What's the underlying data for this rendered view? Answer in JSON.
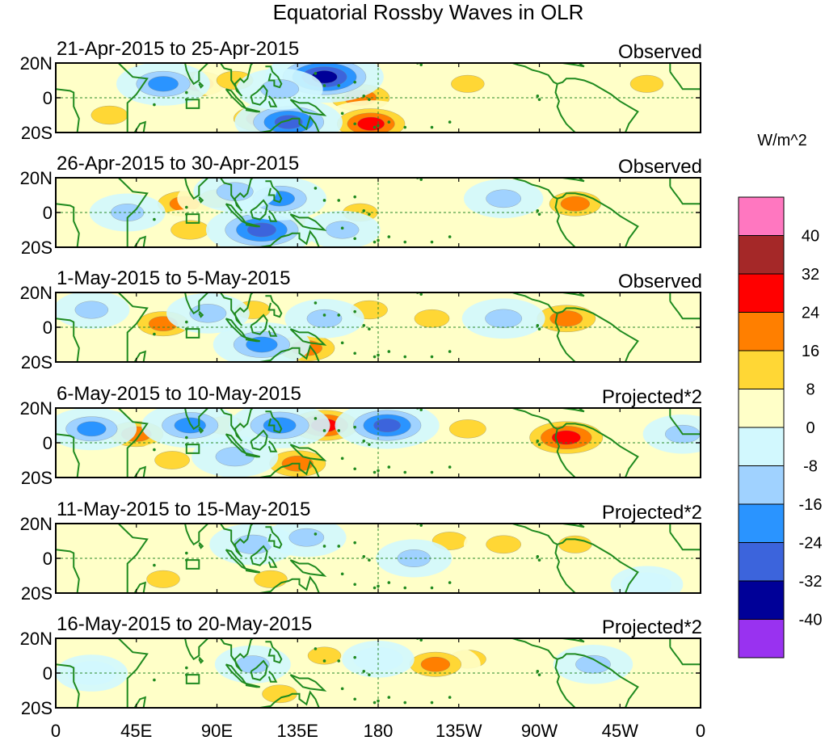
{
  "chart_data": {
    "type": "heatmap",
    "title": "Equatorial Rossby Waves in OLR",
    "xlabel": "",
    "ylabel": "",
    "x_ticks": [
      "0",
      "45E",
      "90E",
      "135E",
      "180",
      "135W",
      "90W",
      "45W",
      "0"
    ],
    "x_range_deg_east": [
      0,
      360
    ],
    "y_ticks": [
      "20N",
      "0",
      "20S"
    ],
    "y_range_deg": [
      -20,
      20
    ],
    "units": "W/m^2",
    "colorbar": {
      "labels": [
        "40",
        "32",
        "24",
        "16",
        "8",
        "0",
        "-8",
        "-16",
        "-24",
        "-32",
        "-40"
      ],
      "colors": [
        "#ff77c0",
        "#a52828",
        "#ff0000",
        "#ff7f00",
        "#ffd735",
        "#ffffc8",
        "#d2f8fe",
        "#a0d2ff",
        "#2a94ff",
        "#3c64dc",
        "#000098",
        "#9932f0"
      ]
    },
    "panels": [
      {
        "date_range": "21-Apr-2015 to 25-Apr-2015",
        "status": "Observed",
        "anomalies": [
          {
            "lon": 80,
            "lat": 8,
            "value": 18
          },
          {
            "lon": 100,
            "lat": 10,
            "value": 14
          },
          {
            "lon": 115,
            "lat": -12,
            "value": 22
          },
          {
            "lon": 170,
            "lat": 0,
            "value": 24
          },
          {
            "lon": 176,
            "lat": -15,
            "value": 26
          },
          {
            "lon": 30,
            "lat": -10,
            "value": 14
          },
          {
            "lon": 150,
            "lat": 12,
            "value": -34
          },
          {
            "lon": 60,
            "lat": 8,
            "value": -20
          },
          {
            "lon": 130,
            "lat": -14,
            "value": -28
          },
          {
            "lon": 125,
            "lat": 5,
            "value": -16
          },
          {
            "lon": 230,
            "lat": 8,
            "value": 10
          },
          {
            "lon": 330,
            "lat": 8,
            "value": 10
          }
        ]
      },
      {
        "date_range": "26-Apr-2015 to 30-Apr-2015",
        "status": "Observed",
        "anomalies": [
          {
            "lon": 72,
            "lat": 5,
            "value": 20
          },
          {
            "lon": 75,
            "lat": -10,
            "value": 16
          },
          {
            "lon": 90,
            "lat": 8,
            "value": 12
          },
          {
            "lon": 130,
            "lat": -5,
            "value": 10
          },
          {
            "lon": 170,
            "lat": 0,
            "value": 12
          },
          {
            "lon": 290,
            "lat": 5,
            "value": 18
          },
          {
            "lon": 115,
            "lat": -10,
            "value": -30
          },
          {
            "lon": 125,
            "lat": 8,
            "value": -20
          },
          {
            "lon": 100,
            "lat": 12,
            "value": -14
          },
          {
            "lon": 160,
            "lat": -10,
            "value": -10
          },
          {
            "lon": 250,
            "lat": 8,
            "value": -12
          },
          {
            "lon": 40,
            "lat": 0,
            "value": -10
          }
        ]
      },
      {
        "date_range": "1-May-2015 to 5-May-2015",
        "status": "Observed",
        "anomalies": [
          {
            "lon": 60,
            "lat": 2,
            "value": 18
          },
          {
            "lon": 110,
            "lat": 10,
            "value": 12
          },
          {
            "lon": 140,
            "lat": -12,
            "value": 22
          },
          {
            "lon": 175,
            "lat": 10,
            "value": 14
          },
          {
            "lon": 285,
            "lat": 5,
            "value": 24
          },
          {
            "lon": 210,
            "lat": 5,
            "value": 12
          },
          {
            "lon": 115,
            "lat": -10,
            "value": -22
          },
          {
            "lon": 85,
            "lat": 8,
            "value": -14
          },
          {
            "lon": 150,
            "lat": 5,
            "value": -12
          },
          {
            "lon": 250,
            "lat": 5,
            "value": -14
          },
          {
            "lon": 20,
            "lat": 10,
            "value": -10
          }
        ]
      },
      {
        "date_range": "6-May-2015 to 10-May-2015",
        "status": "Projected*2",
        "anomalies": [
          {
            "lon": 45,
            "lat": 5,
            "value": 20
          },
          {
            "lon": 95,
            "lat": 10,
            "value": 14
          },
          {
            "lon": 150,
            "lat": 10,
            "value": 26
          },
          {
            "lon": 135,
            "lat": -12,
            "value": 22
          },
          {
            "lon": 285,
            "lat": 3,
            "value": 30
          },
          {
            "lon": 230,
            "lat": 8,
            "value": 14
          },
          {
            "lon": 65,
            "lat": -10,
            "value": 12
          },
          {
            "lon": 75,
            "lat": 10,
            "value": -22
          },
          {
            "lon": 125,
            "lat": 10,
            "value": -24
          },
          {
            "lon": 185,
            "lat": 10,
            "value": -26
          },
          {
            "lon": 100,
            "lat": -8,
            "value": -16
          },
          {
            "lon": 20,
            "lat": 8,
            "value": -18
          },
          {
            "lon": 350,
            "lat": 5,
            "value": -12
          }
        ]
      },
      {
        "date_range": "11-May-2015 to 15-May-2015",
        "status": "Projected*2",
        "anomalies": [
          {
            "lon": 220,
            "lat": 10,
            "value": 12
          },
          {
            "lon": 250,
            "lat": 8,
            "value": 12
          },
          {
            "lon": 290,
            "lat": 8,
            "value": 10
          },
          {
            "lon": 90,
            "lat": 10,
            "value": 8
          },
          {
            "lon": 120,
            "lat": -12,
            "value": 10
          },
          {
            "lon": 60,
            "lat": -12,
            "value": 10
          },
          {
            "lon": 180,
            "lat": -5,
            "value": 8
          },
          {
            "lon": 110,
            "lat": 8,
            "value": -16
          },
          {
            "lon": 140,
            "lat": 12,
            "value": -12
          },
          {
            "lon": 200,
            "lat": 0,
            "value": -10
          },
          {
            "lon": 330,
            "lat": -15,
            "value": -8
          }
        ]
      },
      {
        "date_range": "16-May-2015 to 20-May-2015",
        "status": "Projected*2",
        "anomalies": [
          {
            "lon": 230,
            "lat": 8,
            "value": 14
          },
          {
            "lon": 212,
            "lat": 5,
            "value": 18
          },
          {
            "lon": 125,
            "lat": -12,
            "value": 12
          },
          {
            "lon": 150,
            "lat": 10,
            "value": 10
          },
          {
            "lon": 95,
            "lat": 10,
            "value": 8
          },
          {
            "lon": 60,
            "lat": -12,
            "value": 8
          },
          {
            "lon": 300,
            "lat": 5,
            "value": -12
          },
          {
            "lon": 110,
            "lat": 5,
            "value": -10
          },
          {
            "lon": 180,
            "lat": 8,
            "value": -8
          },
          {
            "lon": 20,
            "lat": 0,
            "value": -8
          }
        ]
      }
    ]
  }
}
